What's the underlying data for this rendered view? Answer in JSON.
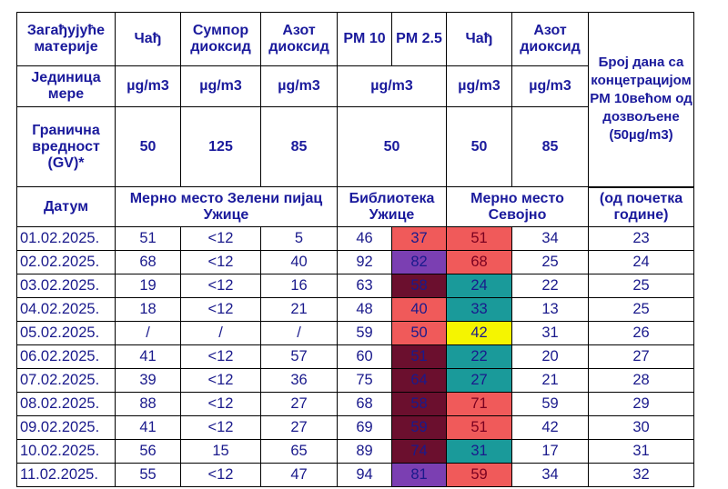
{
  "header": {
    "row1": [
      "Загађујуће материје",
      "Чађ",
      "Сумпор диоксид",
      "Азот диоксид",
      "PM 10",
      "PM 2.5",
      "Чађ",
      "Азот диоксид"
    ],
    "row2_label": "Јединица мере",
    "row2_units": [
      "µg/m3",
      "µg/m3",
      "µg/m3",
      "µg/m3",
      "µg/m3",
      "µg/m3"
    ],
    "row3_label": "Гранична вредност (GV)*",
    "row3_values": [
      "50",
      "125",
      "85",
      "50",
      "50",
      "85"
    ],
    "row4": [
      "Датум",
      "Мерно место Зелени пијац Ужице",
      "Библиотека Ужице",
      "Мерно место Севојно",
      "(од почетка године)"
    ],
    "side_note": "Број дана са концетрацијом PM 10већом од дозвољене (50µg/m3)"
  },
  "rows": [
    {
      "date": "01.02.2025.",
      "v": [
        "51",
        "<12",
        "5",
        "46",
        "37",
        "51",
        "34",
        "23"
      ],
      "pm25_color": "#f05a5a",
      "sev_color": "#f05a5a"
    },
    {
      "date": "02.02.2025.",
      "v": [
        "68",
        "<12",
        "40",
        "92",
        "82",
        "68",
        "25",
        "24"
      ],
      "pm25_color": "#7b3fb2",
      "sev_color": "#f05a5a"
    },
    {
      "date": "03.02.2025.",
      "v": [
        "19",
        "<12",
        "16",
        "63",
        "58",
        "24",
        "22",
        "25"
      ],
      "pm25_color": "#6b0f2e",
      "sev_color": "#1a9a9a"
    },
    {
      "date": "04.02.2025.",
      "v": [
        "18",
        "<12",
        "21",
        "48",
        "40",
        "33",
        "13",
        "25"
      ],
      "pm25_color": "#f05a5a",
      "sev_color": "#1a9a9a"
    },
    {
      "date": "05.02.2025.",
      "v": [
        "/",
        "/",
        "/",
        "59",
        "50",
        "42",
        "31",
        "26"
      ],
      "pm25_color": "#f05a5a",
      "sev_color": "#f5f500"
    },
    {
      "date": "06.02.2025.",
      "v": [
        "41",
        "<12",
        "57",
        "60",
        "51",
        "22",
        "20",
        "27"
      ],
      "pm25_color": "#6b0f2e",
      "sev_color": "#1a9a9a"
    },
    {
      "date": "07.02.2025.",
      "v": [
        "39",
        "<12",
        "36",
        "75",
        "64",
        "27",
        "21",
        "28"
      ],
      "pm25_color": "#6b0f2e",
      "sev_color": "#1a9a9a"
    },
    {
      "date": "08.02.2025.",
      "v": [
        "88",
        "<12",
        "27",
        "68",
        "58",
        "71",
        "59",
        "29"
      ],
      "pm25_color": "#6b0f2e",
      "sev_color": "#f05a5a"
    },
    {
      "date": "09.02.2025.",
      "v": [
        "41",
        "<12",
        "27",
        "69",
        "59",
        "51",
        "42",
        "30"
      ],
      "pm25_color": "#6b0f2e",
      "sev_color": "#f05a5a"
    },
    {
      "date": "10.02.2025.",
      "v": [
        "56",
        "15",
        "65",
        "89",
        "74",
        "31",
        "17",
        "31"
      ],
      "pm25_color": "#6b0f2e",
      "sev_color": "#1a9a9a"
    },
    {
      "date": "11.02.2025.",
      "v": [
        "55",
        "<12",
        "47",
        "94",
        "81",
        "59",
        "34",
        "32"
      ],
      "pm25_color": "#7b3fb2",
      "sev_color": "#f05a5a"
    }
  ]
}
